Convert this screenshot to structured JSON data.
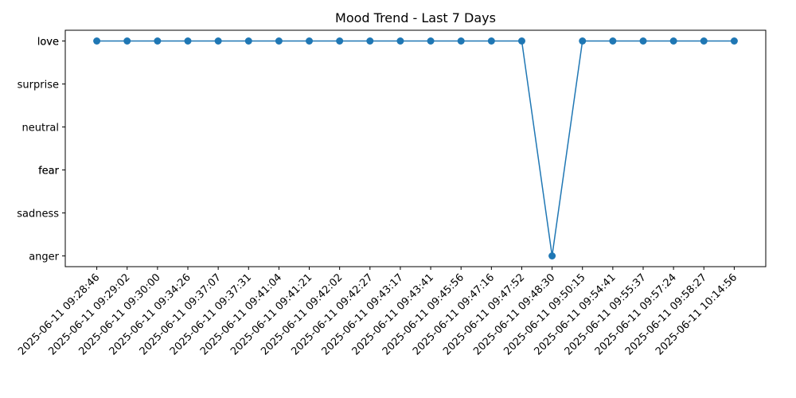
{
  "chart_data": {
    "type": "line",
    "title": "Mood Trend - Last 7 Days",
    "xlabel": "",
    "ylabel": "",
    "grid": false,
    "y_categories": [
      "anger",
      "sadness",
      "fear",
      "fear",
      "neutral",
      "surprise",
      "love",
      "love"
    ],
    "y_category_levels": [
      0,
      1,
      2,
      2,
      3,
      4,
      5,
      5
    ],
    "ylim": [
      -0.25,
      5.25
    ],
    "series": [
      {
        "color": "#1f77b4",
        "marker": "circle",
        "x": [
          "2025-06-11 09:28:46",
          "2025-06-11 09:29:02",
          "2025-06-11 09:30:00",
          "2025-06-11 09:34:26",
          "2025-06-11 09:37:07",
          "2025-06-11 09:37:31",
          "2025-06-11 09:41:04",
          "2025-06-11 09:41:21",
          "2025-06-11 09:42:02",
          "2025-06-11 09:42:27",
          "2025-06-11 09:43:17",
          "2025-06-11 09:43:41",
          "2025-06-11 09:45:56",
          "2025-06-11 09:47:16",
          "2025-06-11 09:47:52",
          "2025-06-11 09:48:30",
          "2025-06-11 09:50:15",
          "2025-06-11 09:54:41",
          "2025-06-11 09:55:37",
          "2025-06-11 09:57:24",
          "2025-06-11 09:58:27",
          "2025-06-11 10:14:56"
        ],
        "values": [
          "love",
          "love",
          "love",
          "love",
          "love",
          "love",
          "love",
          "love",
          "love",
          "love",
          "love",
          "love",
          "love",
          "love",
          "love",
          "anger",
          "love",
          "love",
          "love",
          "love",
          "love",
          "love"
        ]
      }
    ]
  }
}
